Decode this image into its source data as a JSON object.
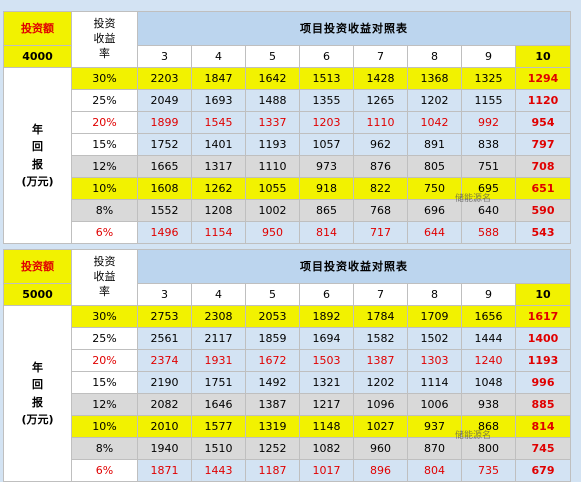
{
  "years": [
    "3",
    "4",
    "5",
    "6",
    "7",
    "8",
    "9",
    "10"
  ],
  "tables": [
    {
      "invest_label": "投资额",
      "invest_value": "4000",
      "rate_header": "投资收益率",
      "title": "项目投资收益对照表",
      "side_label": [
        "年",
        "回",
        "报",
        "(万元)"
      ],
      "rows": [
        {
          "rate": "30%",
          "values": [
            "2203",
            "1847",
            "1642",
            "1513",
            "1428",
            "1368",
            "1325",
            "1294"
          ]
        },
        {
          "rate": "25%",
          "values": [
            "2049",
            "1693",
            "1488",
            "1355",
            "1265",
            "1202",
            "1155",
            "1120"
          ]
        },
        {
          "rate": "20%",
          "values": [
            "1899",
            "1545",
            "1337",
            "1203",
            "1110",
            "1042",
            "992",
            "954"
          ]
        },
        {
          "rate": "15%",
          "values": [
            "1752",
            "1401",
            "1193",
            "1057",
            "962",
            "891",
            "838",
            "797"
          ]
        },
        {
          "rate": "12%",
          "values": [
            "1665",
            "1317",
            "1110",
            "973",
            "876",
            "805",
            "751",
            "708"
          ]
        },
        {
          "rate": "10%",
          "values": [
            "1608",
            "1262",
            "1055",
            "918",
            "822",
            "750",
            "695",
            "651"
          ]
        },
        {
          "rate": "8%",
          "values": [
            "1552",
            "1208",
            "1002",
            "865",
            "768",
            "696",
            "640",
            "590"
          ]
        },
        {
          "rate": "6%",
          "values": [
            "1496",
            "1154",
            "950",
            "814",
            "717",
            "644",
            "588",
            "543"
          ]
        }
      ]
    },
    {
      "invest_label": "投资额",
      "invest_value": "5000",
      "rate_header": "投资收益率",
      "title": "项目投资收益对照表",
      "side_label": [
        "年",
        "回",
        "报",
        "(万元)"
      ],
      "rows": [
        {
          "rate": "30%",
          "values": [
            "2753",
            "2308",
            "2053",
            "1892",
            "1784",
            "1709",
            "1656",
            "1617"
          ]
        },
        {
          "rate": "25%",
          "values": [
            "2561",
            "2117",
            "1859",
            "1694",
            "1582",
            "1502",
            "1444",
            "1400"
          ]
        },
        {
          "rate": "20%",
          "values": [
            "2374",
            "1931",
            "1672",
            "1503",
            "1387",
            "1303",
            "1240",
            "1193"
          ]
        },
        {
          "rate": "15%",
          "values": [
            "2190",
            "1751",
            "1492",
            "1321",
            "1202",
            "1114",
            "1048",
            "996"
          ]
        },
        {
          "rate": "12%",
          "values": [
            "2082",
            "1646",
            "1387",
            "1217",
            "1096",
            "1006",
            "938",
            "885"
          ]
        },
        {
          "rate": "10%",
          "values": [
            "2010",
            "1577",
            "1319",
            "1148",
            "1027",
            "937",
            "868",
            "814"
          ]
        },
        {
          "rate": "8%",
          "values": [
            "1940",
            "1510",
            "1252",
            "1082",
            "960",
            "870",
            "800",
            "745"
          ]
        },
        {
          "rate": "6%",
          "values": [
            "1871",
            "1443",
            "1187",
            "1017",
            "896",
            "804",
            "735",
            "679"
          ]
        }
      ]
    }
  ],
  "watermark": "储能源名"
}
